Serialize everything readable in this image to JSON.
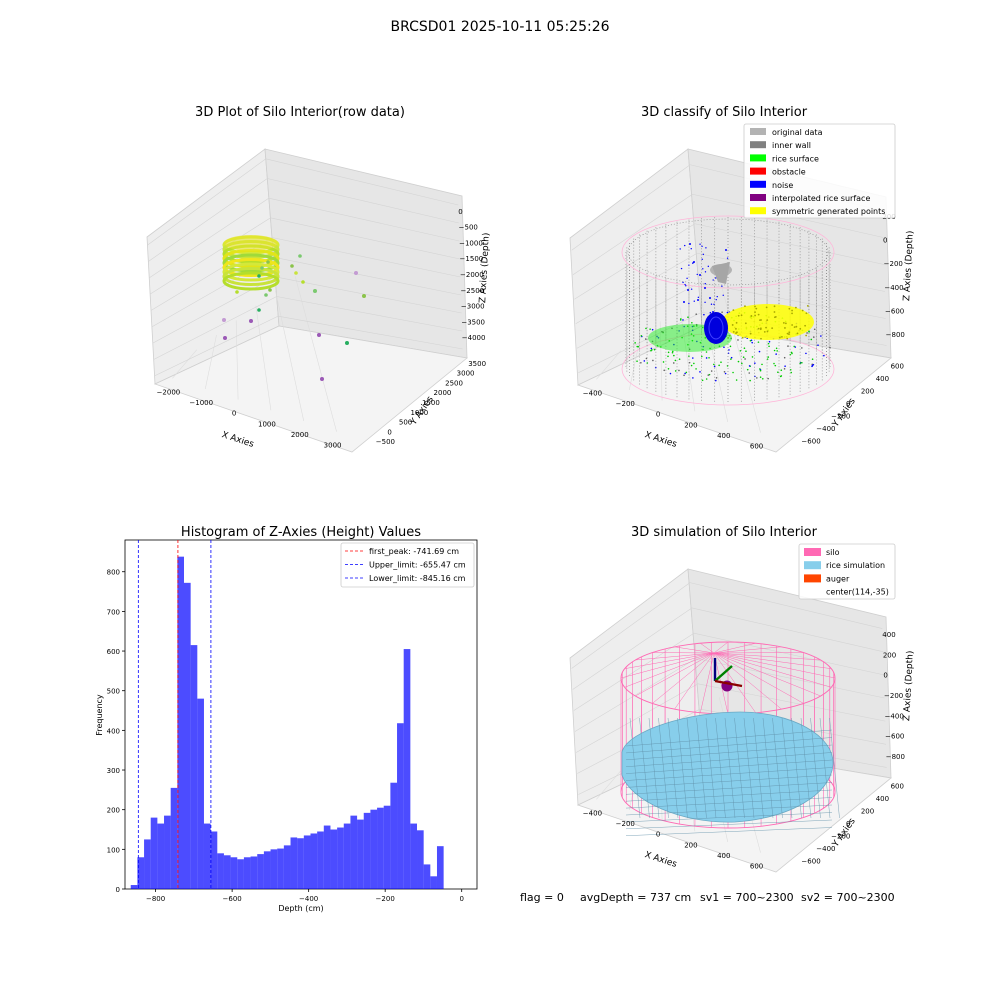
{
  "figure": {
    "suptitle": "BRCSD01 2025-10-11 05:25:26",
    "footer": {
      "flag": "flag = 0",
      "avg_depth": "avgDepth = 737 cm",
      "sv1": "sv1 = 700~2300",
      "sv2": "sv2 = 700~2300"
    }
  },
  "chart_data": [
    {
      "type": "scatter",
      "projection": "3d",
      "title": "3D Plot of Silo Interior(row data)",
      "xlabel": "X Axies",
      "ylabel": "Y Axies",
      "zlabel": "Z Axies (Depth)",
      "xticks": [
        "−2000",
        "−1000",
        "0",
        "1000",
        "2000",
        "3000"
      ],
      "yticks": [
        "−500",
        "0",
        "500",
        "1000",
        "1500",
        "2000",
        "2500",
        "3000",
        "3500"
      ],
      "zticks": [
        "0",
        "−500",
        "−1000",
        "−1500",
        "−2000",
        "−2500",
        "−3000",
        "−3500",
        "−4000"
      ],
      "xlim": [
        -2200,
        3300
      ],
      "ylim": [
        -600,
        3600
      ],
      "zlim": [
        -4200,
        200
      ],
      "colormap": "viridis",
      "outlier_points": [
        {
          "x": 800,
          "y": 200,
          "z": -4000,
          "color": "#9b59b6"
        },
        {
          "x": 700,
          "y": 1500,
          "z": -3800,
          "color": "#27ae60"
        },
        {
          "x": 2600,
          "y": 2400,
          "z": -2500,
          "color": "#c39bd3"
        },
        {
          "x": 2900,
          "y": 1800,
          "z": -2600,
          "color": "#8bc34a"
        },
        {
          "x": 1300,
          "y": 2300,
          "z": -1700,
          "color": "#7bc96f"
        }
      ]
    },
    {
      "type": "scatter",
      "projection": "3d",
      "title": "3D classify of Silo Interior",
      "xlabel": "X Axies",
      "ylabel": "Y Axies",
      "zlabel": "Z Axies (Depth)",
      "xticks": [
        "−400",
        "−200",
        "0",
        "200",
        "400",
        "600"
      ],
      "yticks": [
        "−600",
        "−400",
        "−200",
        "0",
        "200",
        "400",
        "600"
      ],
      "zticks": [
        "200",
        "0",
        "−200",
        "−400",
        "−600",
        "−800"
      ],
      "xlim": [
        -500,
        700
      ],
      "ylim": [
        -650,
        650
      ],
      "zlim": [
        -900,
        250
      ],
      "legend": {
        "location": "upper right",
        "entries": [
          {
            "label": "original data",
            "color": "#b3b3b3"
          },
          {
            "label": "inner wall",
            "color": "#808080"
          },
          {
            "label": "rice surface",
            "color": "#00ff00"
          },
          {
            "label": "obstacle",
            "color": "#ff0000"
          },
          {
            "label": "noise",
            "color": "#0000ff"
          },
          {
            "label": "interpolated rice surface",
            "color": "#800080"
          },
          {
            "label": "symmetric generated points",
            "color": "#ffff00"
          }
        ]
      }
    },
    {
      "type": "bar",
      "title": "Histogram of Z-Axies (Height) Values",
      "xlabel": "Depth (cm)",
      "ylabel": "Frequency",
      "xlim": [
        -880,
        40
      ],
      "ylim": [
        0,
        880
      ],
      "xticks": [
        -800,
        -600,
        -400,
        -200,
        0
      ],
      "yticks": [
        0,
        100,
        200,
        300,
        400,
        500,
        600,
        700,
        800
      ],
      "bar_color": "#0000ff",
      "bin_start": -865,
      "bin_width": 17.4,
      "values": [
        10,
        80,
        125,
        180,
        165,
        185,
        255,
        838,
        772,
        615,
        480,
        165,
        145,
        90,
        85,
        80,
        75,
        80,
        82,
        88,
        95,
        100,
        102,
        110,
        130,
        128,
        135,
        140,
        145,
        160,
        150,
        155,
        165,
        185,
        175,
        192,
        200,
        205,
        210,
        268,
        418,
        605,
        165,
        148,
        62,
        32,
        108
      ],
      "vlines": [
        {
          "label": "first_peak: -741.69 cm",
          "x": -741.69,
          "color": "#ff0000"
        },
        {
          "label": "Upper_limit: -655.47 cm",
          "x": -655.47,
          "color": "#0000ff"
        },
        {
          "label": "Lower_limit: -845.16 cm",
          "x": -845.16,
          "color": "#0000ff"
        }
      ],
      "legend": {
        "location": "upper right"
      }
    },
    {
      "type": "surface",
      "projection": "3d",
      "title": "3D simulation of Silo Interior",
      "xlabel": "X Axies",
      "ylabel": "Y Axies",
      "zlabel": "Z Axies (Depth)",
      "xticks": [
        "−400",
        "−200",
        "0",
        "200",
        "400",
        "600"
      ],
      "yticks": [
        "−600",
        "−400",
        "−200",
        "0",
        "200",
        "400",
        "600"
      ],
      "zticks": [
        "400",
        "200",
        "0",
        "−200",
        "−400",
        "−600",
        "−800"
      ],
      "xlim": [
        -500,
        700
      ],
      "ylim": [
        -650,
        650
      ],
      "zlim": [
        -900,
        450
      ],
      "legend": {
        "location": "upper right",
        "entries": [
          {
            "label": "silo",
            "color": "#ff69b4"
          },
          {
            "label": "rice simulation",
            "color": "#87ceeb"
          },
          {
            "label": "auger",
            "color": "#ff4500"
          },
          {
            "label": "center(114,-35)",
            "color": ""
          }
        ]
      }
    }
  ]
}
